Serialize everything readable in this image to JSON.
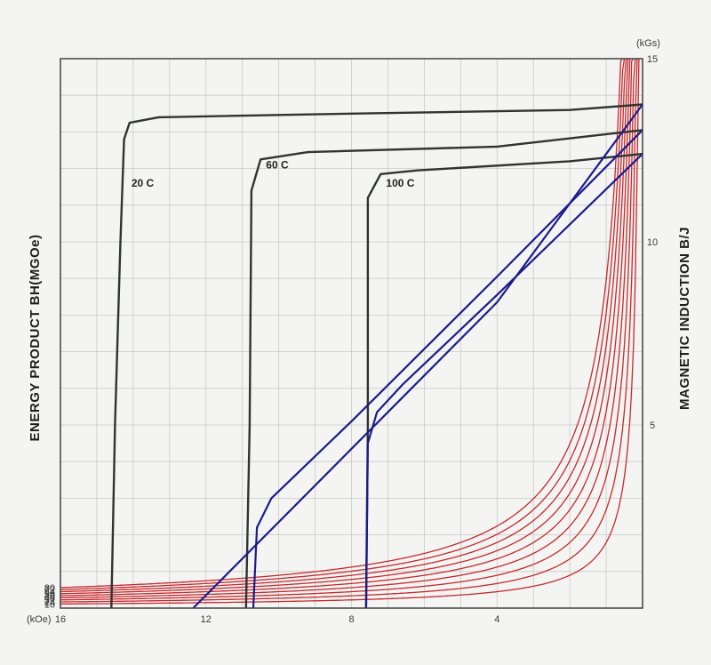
{
  "chart_data": {
    "type": "line",
    "x_axis": {
      "unit_label": "(kOe)",
      "ticks": [
        16,
        12,
        8,
        4
      ],
      "range": [
        16,
        0
      ],
      "minor_step": 1
    },
    "right_axis": {
      "label": "MAGNETIC INDUCTION B/J",
      "unit_label": "(kGs)",
      "ticks": [
        15,
        10,
        5
      ],
      "range": [
        0,
        15
      ],
      "minor_step": 1
    },
    "left_axis": {
      "label": "ENERGY PRODUCT BH(MGOe)",
      "ticks": [
        16,
        24,
        32,
        40,
        48,
        56,
        64,
        72,
        80
      ]
    },
    "grid": true,
    "colors": {
      "energy_curve": "#c8282d",
      "b_curve": "#1c1c8c",
      "j_curve": "#2f3431",
      "grid": "#c9c9c9",
      "frame": "#404040",
      "plot_bg": "#f4f4f2"
    },
    "energy_product_curves": [
      {
        "label": "16",
        "bh": 16
      },
      {
        "label": "24",
        "bh": 24
      },
      {
        "label": "32",
        "bh": 32
      },
      {
        "label": "40",
        "bh": 40
      },
      {
        "label": "48",
        "bh": 48
      },
      {
        "label": "56",
        "bh": 56
      },
      {
        "label": "64",
        "bh": 64
      },
      {
        "label": "72",
        "bh": 72
      },
      {
        "label": "80",
        "bh": 80
      }
    ],
    "temperature_curves": [
      {
        "label": "20 C",
        "j_curve": [
          [
            14.6,
            0
          ],
          [
            14.5,
            5
          ],
          [
            14.35,
            10
          ],
          [
            14.25,
            12.8
          ],
          [
            14.1,
            13.25
          ],
          [
            13.3,
            13.4
          ],
          [
            8,
            13.5
          ],
          [
            2,
            13.6
          ],
          [
            0,
            13.75
          ]
        ],
        "b_curve": [
          [
            12.35,
            0
          ],
          [
            8,
            4.35
          ],
          [
            4,
            8.35
          ],
          [
            0,
            13.75
          ]
        ]
      },
      {
        "label": "60 C",
        "j_curve": [
          [
            10.9,
            0
          ],
          [
            10.8,
            5
          ],
          [
            10.75,
            11.4
          ],
          [
            10.5,
            12.25
          ],
          [
            9.2,
            12.45
          ],
          [
            4,
            12.6
          ],
          [
            0,
            13.05
          ]
        ],
        "b_curve": [
          [
            10.7,
            0
          ],
          [
            10.6,
            2.2
          ],
          [
            10.2,
            3
          ],
          [
            8,
            5.1
          ],
          [
            4,
            9.05
          ],
          [
            0,
            13.05
          ]
        ]
      },
      {
        "label": "100 C",
        "j_curve": [
          [
            7.6,
            0
          ],
          [
            7.55,
            5
          ],
          [
            7.55,
            11.2
          ],
          [
            7.2,
            11.85
          ],
          [
            6.2,
            11.95
          ],
          [
            2,
            12.2
          ],
          [
            0,
            12.4
          ]
        ],
        "b_curve": [
          [
            7.6,
            0
          ],
          [
            7.55,
            4.5
          ],
          [
            7.3,
            5.35
          ],
          [
            6.6,
            6.1
          ],
          [
            4,
            8.55
          ],
          [
            0,
            12.4
          ]
        ]
      }
    ]
  }
}
